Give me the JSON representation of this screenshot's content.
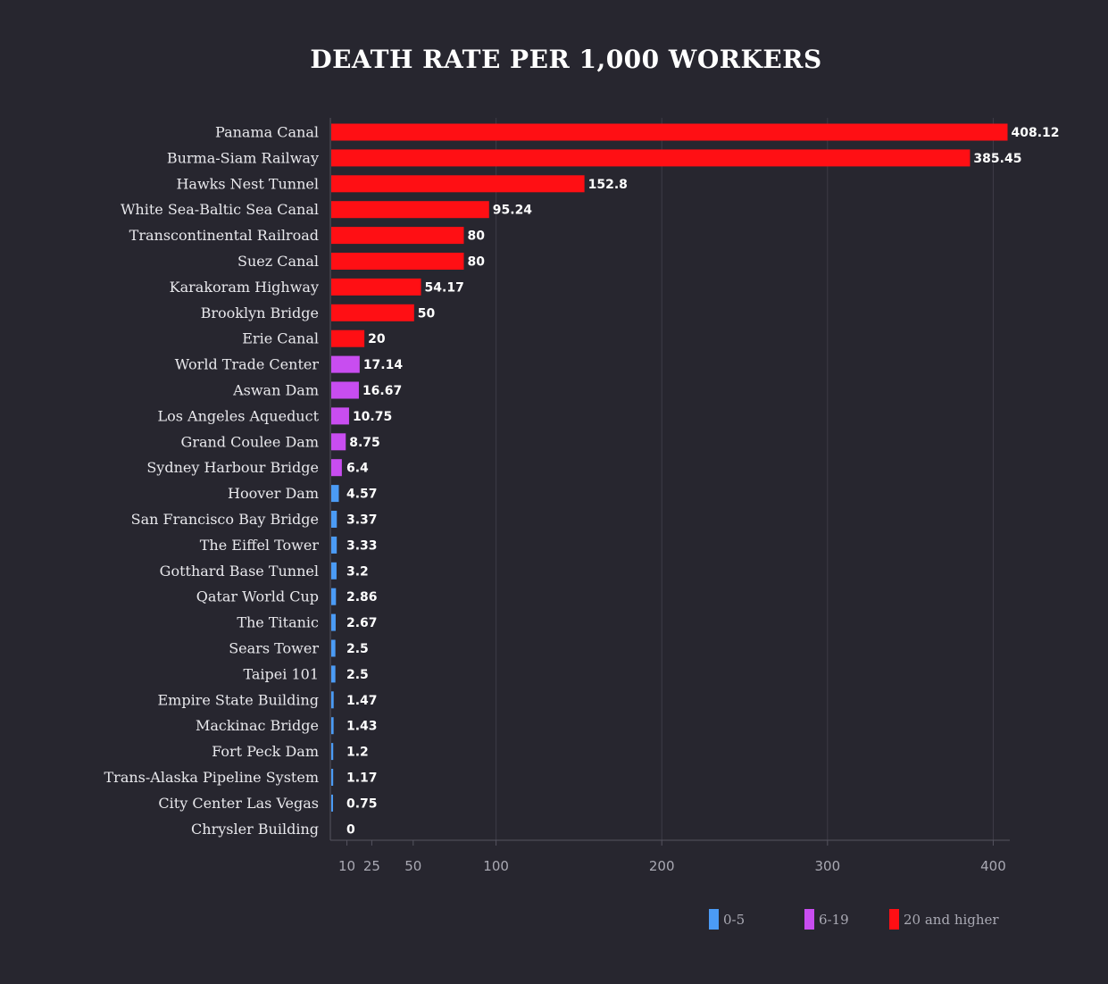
{
  "chart_data": {
    "type": "bar",
    "orientation": "horizontal",
    "title": "DEATH RATE PER 1,000 WORKERS",
    "xlabel": "",
    "ylabel": "",
    "xlim": [
      0,
      410
    ],
    "x_ticks": [
      10,
      25,
      50,
      100,
      200,
      300,
      400
    ],
    "grid": "vertical",
    "categories": [
      "Panama Canal",
      "Burma-Siam Railway",
      "Hawks Nest Tunnel",
      "White Sea-Baltic Sea Canal",
      "Transcontinental Railroad",
      "Suez Canal",
      "Karakoram Highway",
      "Brooklyn Bridge",
      "Erie Canal",
      "World Trade Center",
      "Aswan Dam",
      "Los Angeles Aqueduct",
      "Grand Coulee Dam",
      "Sydney Harbour Bridge",
      "Hoover Dam",
      "San Francisco Bay Bridge",
      "The Eiffel Tower",
      "Gotthard Base Tunnel",
      "Qatar World Cup",
      "The Titanic",
      "Sears Tower",
      "Taipei 101",
      "Empire State Building",
      "Mackinac Bridge",
      "Fort Peck Dam",
      "Trans-Alaska Pipeline System",
      "City Center Las Vegas",
      "Chrysler Building"
    ],
    "values": [
      408.12,
      385.45,
      152.8,
      95.24,
      80,
      80,
      54.17,
      50,
      20,
      17.14,
      16.67,
      10.75,
      8.75,
      6.4,
      4.57,
      3.37,
      3.33,
      3.2,
      2.86,
      2.67,
      2.5,
      2.5,
      1.47,
      1.43,
      1.2,
      1.17,
      0.75,
      0
    ],
    "value_labels": [
      "408.12",
      "385.45",
      "152.8",
      "95.24",
      "80",
      "80",
      "54.17",
      "50",
      "20",
      "17.14",
      "16.67",
      "10.75",
      "8.75",
      "6.4",
      "4.57",
      "3.37",
      "3.33",
      "3.2",
      "2.86",
      "2.67",
      "2.5",
      "2.5",
      "1.47",
      "1.43",
      "1.2",
      "1.17",
      "0.75",
      "0"
    ],
    "groups": [
      "20+",
      "20+",
      "20+",
      "20+",
      "20+",
      "20+",
      "20+",
      "20+",
      "20+",
      "6-19",
      "6-19",
      "6-19",
      "6-19",
      "6-19",
      "0-5",
      "0-5",
      "0-5",
      "0-5",
      "0-5",
      "0-5",
      "0-5",
      "0-5",
      "0-5",
      "0-5",
      "0-5",
      "0-5",
      "0-5",
      "0-5"
    ],
    "legend": {
      "placement": "bottom-right",
      "items": [
        {
          "key": "0-5",
          "label": "0-5",
          "color": "#4b9bf5"
        },
        {
          "key": "6-19",
          "label": "6-19",
          "color": "#c84df0"
        },
        {
          "key": "20+",
          "label": "20 and higher",
          "color": "#ff0f14"
        }
      ]
    },
    "colors": {
      "background": "#27262f",
      "grid": "#3d3c47",
      "axis": "#55545f"
    }
  }
}
